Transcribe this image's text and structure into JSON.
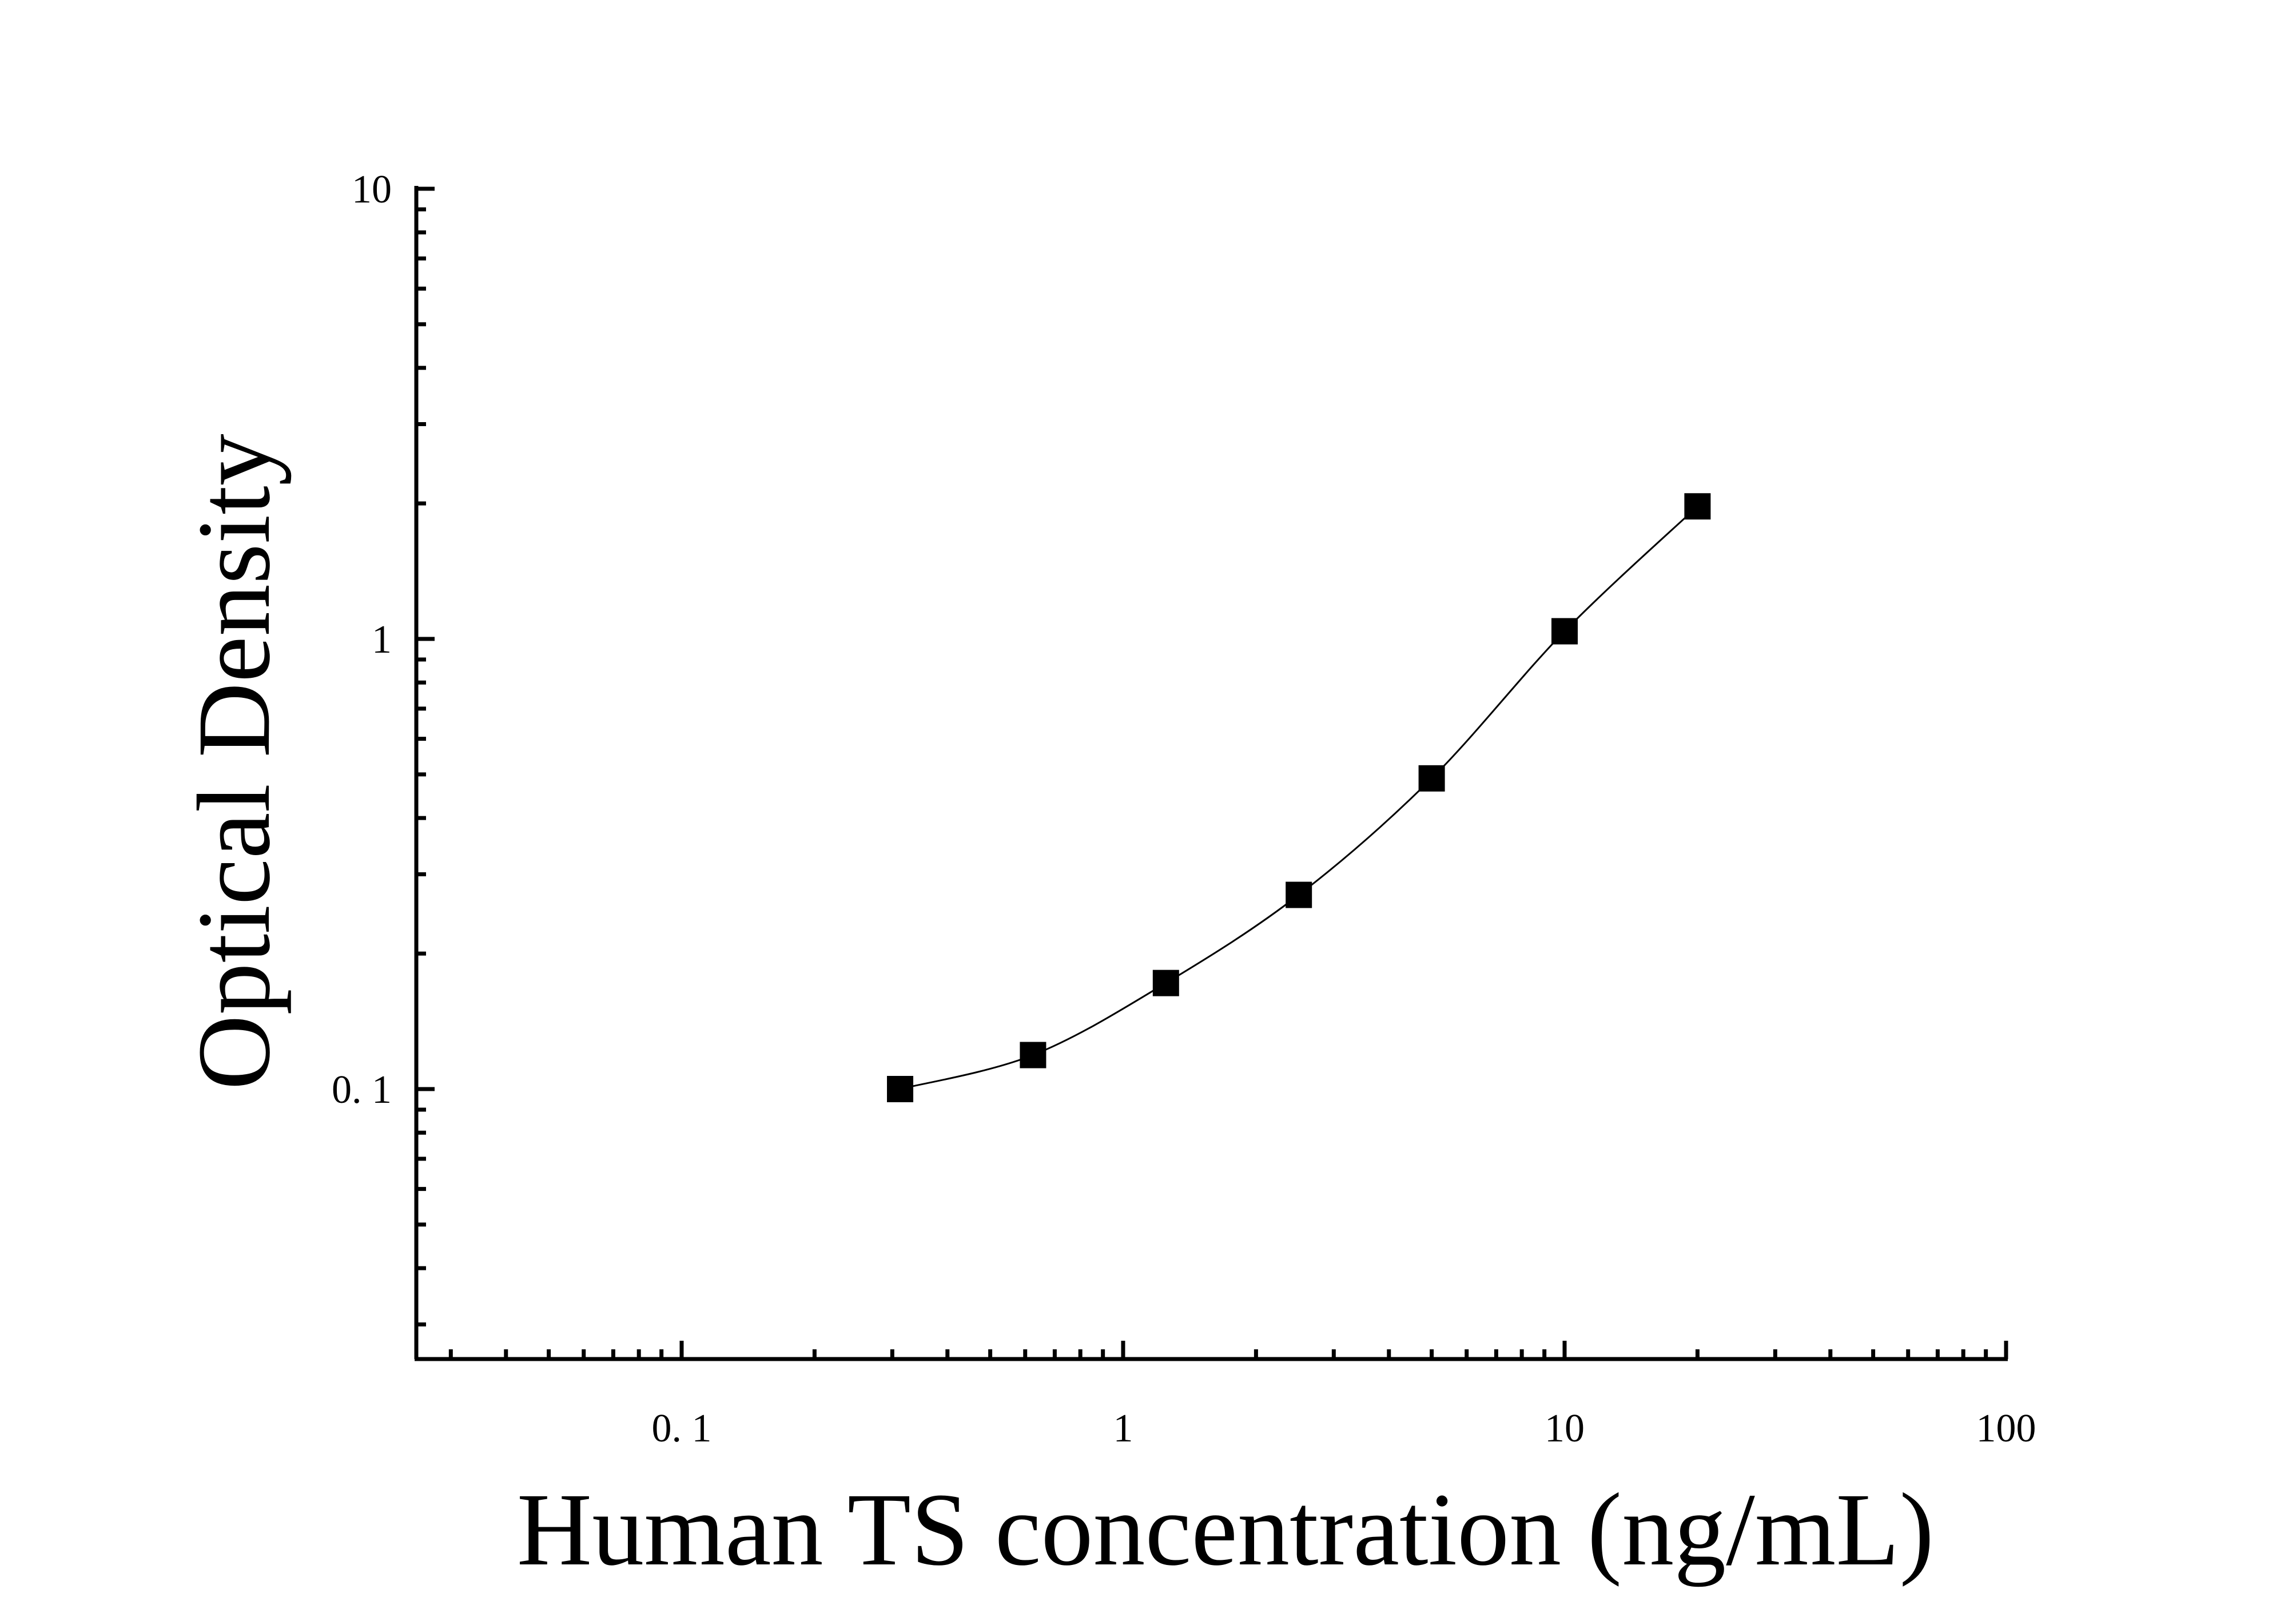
{
  "chart_data": {
    "type": "scatter",
    "xlabel": "Human TS concentration (ng/mL)",
    "ylabel": "Optical Density",
    "x_scale": "log",
    "y_scale": "log",
    "xlim": [
      0.025,
      100
    ],
    "ylim": [
      0.025,
      10
    ],
    "x_ticks": [
      {
        "value": 0.1,
        "label": "0. 1"
      },
      {
        "value": 1,
        "label": "1"
      },
      {
        "value": 10,
        "label": "10"
      },
      {
        "value": 100,
        "label": "100"
      }
    ],
    "y_ticks": [
      {
        "value": 0.1,
        "label": "0. 1"
      },
      {
        "value": 1,
        "label": "1"
      },
      {
        "value": 10,
        "label": "10"
      }
    ],
    "grid": false,
    "series": [
      {
        "marker": "square",
        "color": "#000000",
        "fit_line": true,
        "points": [
          {
            "x": 0.3125,
            "y": 0.1
          },
          {
            "x": 0.625,
            "y": 0.119
          },
          {
            "x": 1.25,
            "y": 0.172
          },
          {
            "x": 2.5,
            "y": 0.27
          },
          {
            "x": 5,
            "y": 0.49
          },
          {
            "x": 10,
            "y": 1.04
          },
          {
            "x": 20,
            "y": 1.97
          }
        ]
      }
    ]
  }
}
